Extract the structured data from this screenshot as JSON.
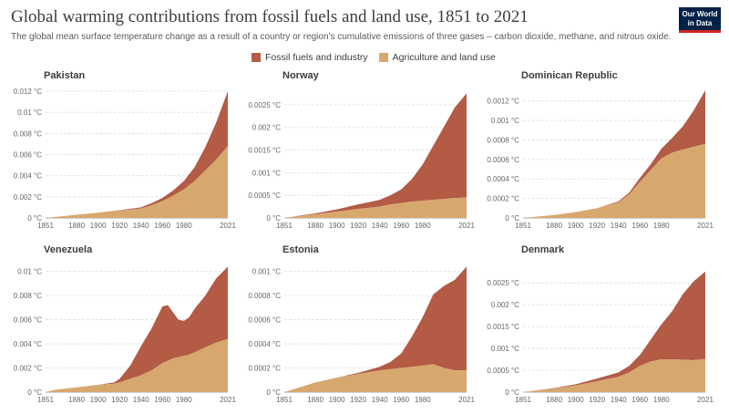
{
  "header": {
    "title": "Global warming contributions from fossil fuels and land use, 1851 to 2021",
    "subtitle": "The global mean surface temperature change as a result of a country or region's cumulative emissions of three gases – carbon dioxide, methane, and nitrous oxide.",
    "logo_line1": "Our World",
    "logo_line2": "in Data"
  },
  "legend": {
    "items": [
      {
        "label": "Fossil fuels and industry",
        "color": "#b35b45"
      },
      {
        "label": "Agriculture and land use",
        "color": "#d7a86e"
      }
    ]
  },
  "chart_data": [
    {
      "type": "area",
      "stacked": true,
      "title": "Pakistan",
      "x_ticks": [
        "1851",
        "1880",
        "1900",
        "1920",
        "1940",
        "1960",
        "1980",
        "2021"
      ],
      "y_ticks": [
        "0 °C",
        "0.002 °C",
        "0.004 °C",
        "0.006 °C",
        "0.008 °C",
        "0.01 °C",
        "0.012 °C"
      ],
      "ylim": [
        0,
        0.012
      ],
      "xlim": [
        1851,
        2021
      ],
      "x": [
        1851,
        1880,
        1900,
        1920,
        1940,
        1950,
        1960,
        1970,
        1980,
        1990,
        2000,
        2010,
        2021
      ],
      "series": [
        {
          "name": "Agriculture and land use",
          "values": [
            0,
            0.0003,
            0.0005,
            0.0007,
            0.0009,
            0.0012,
            0.0016,
            0.0021,
            0.0027,
            0.0035,
            0.0045,
            0.0055,
            0.0068
          ]
        },
        {
          "name": "Fossil fuels and industry",
          "values": [
            0,
            0,
            0,
            3e-05,
            0.0001,
            0.0002,
            0.0003,
            0.0005,
            0.0008,
            0.0013,
            0.0022,
            0.0035,
            0.0052
          ]
        }
      ]
    },
    {
      "type": "area",
      "stacked": true,
      "title": "Norway",
      "x_ticks": [
        "1851",
        "1880",
        "1900",
        "1920",
        "1940",
        "1960",
        "1980",
        "2021"
      ],
      "y_ticks": [
        "0 °C",
        "0.0005 °C",
        "0.001 °C",
        "0.0015 °C",
        "0.002 °C",
        "0.0025 °C"
      ],
      "ylim": [
        0,
        0.0028
      ],
      "xlim": [
        1851,
        2021
      ],
      "x": [
        1851,
        1880,
        1900,
        1920,
        1940,
        1950,
        1960,
        1970,
        1980,
        1990,
        2000,
        2010,
        2021
      ],
      "series": [
        {
          "name": "Agriculture and land use",
          "values": [
            0,
            8e-05,
            0.00014,
            0.0002,
            0.00025,
            0.0003,
            0.00033,
            0.00036,
            0.00038,
            0.0004,
            0.00042,
            0.00044,
            0.00045
          ]
        },
        {
          "name": "Fossil fuels and industry",
          "values": [
            0,
            2e-05,
            5e-05,
            0.0001,
            0.00015,
            0.0002,
            0.0003,
            0.0005,
            0.0008,
            0.0012,
            0.0016,
            0.002,
            0.0023
          ]
        }
      ]
    },
    {
      "type": "area",
      "stacked": true,
      "title": "Dominican Republic",
      "x_ticks": [
        "1851",
        "1880",
        "1900",
        "1920",
        "1940",
        "1960",
        "1980",
        "2021"
      ],
      "y_ticks": [
        "0 °C",
        "0.0002 °C",
        "0.0004 °C",
        "0.0006 °C",
        "0.0008 °C",
        "0.001 °C",
        "0.0012 °C"
      ],
      "ylim": [
        0,
        0.0013
      ],
      "xlim": [
        1851,
        2021
      ],
      "x": [
        1851,
        1880,
        1900,
        1920,
        1940,
        1950,
        1960,
        1970,
        1980,
        1990,
        2000,
        2010,
        2021
      ],
      "series": [
        {
          "name": "Agriculture and land use",
          "values": [
            0,
            3e-05,
            6e-05,
            0.0001,
            0.00016,
            0.00024,
            0.00037,
            0.00049,
            0.00061,
            0.00067,
            0.0007,
            0.00073,
            0.00076
          ]
        },
        {
          "name": "Fossil fuels and industry",
          "values": [
            0,
            0,
            0,
            0,
            1e-05,
            2e-05,
            4e-05,
            6e-05,
            0.0001,
            0.00015,
            0.00024,
            0.00037,
            0.00055
          ]
        }
      ]
    },
    {
      "type": "area",
      "stacked": true,
      "title": "Venezuela",
      "x_ticks": [
        "1851",
        "1880",
        "1900",
        "1920",
        "1940",
        "1960",
        "1980",
        "2021"
      ],
      "y_ticks": [
        "0 °C",
        "0.002 °C",
        "0.004 °C",
        "0.006 °C",
        "0.008 °C",
        "0.01 °C"
      ],
      "ylim": [
        0,
        0.0105
      ],
      "xlim": [
        1851,
        2021
      ],
      "x": [
        1851,
        1860,
        1880,
        1900,
        1915,
        1920,
        1930,
        1940,
        1950,
        1960,
        1965,
        1970,
        1975,
        1980,
        1985,
        1990,
        2000,
        2010,
        2021
      ],
      "series": [
        {
          "name": "Agriculture and land use",
          "values": [
            0,
            0.0002,
            0.0004,
            0.0006,
            0.0007,
            0.0008,
            0.0011,
            0.0014,
            0.0018,
            0.0024,
            0.0026,
            0.0028,
            0.0029,
            0.003,
            0.0031,
            0.0033,
            0.0037,
            0.0041,
            0.0044
          ]
        },
        {
          "name": "Fossil fuels and industry",
          "values": [
            0,
            0,
            0,
            0,
            0.0001,
            0.0003,
            0.0011,
            0.0024,
            0.0035,
            0.0047,
            0.0046,
            0.0038,
            0.0031,
            0.0029,
            0.0031,
            0.0036,
            0.0043,
            0.0053,
            0.006
          ]
        }
      ]
    },
    {
      "type": "area",
      "stacked": true,
      "title": "Estonia",
      "x_ticks": [
        "1851",
        "1880",
        "1900",
        "1920",
        "1940",
        "1960",
        "1980",
        "2021"
      ],
      "y_ticks": [
        "0 °C",
        "0.0002 °C",
        "0.0004 °C",
        "0.0006 °C",
        "0.0008 °C",
        "0.001 °C"
      ],
      "ylim": [
        0,
        0.00105
      ],
      "xlim": [
        1851,
        2021
      ],
      "x": [
        1851,
        1880,
        1900,
        1920,
        1940,
        1950,
        1960,
        1970,
        1980,
        1990,
        2000,
        2010,
        2021
      ],
      "series": [
        {
          "name": "Agriculture and land use",
          "values": [
            0,
            8e-05,
            0.00012,
            0.00015,
            0.00018,
            0.00019,
            0.0002,
            0.00021,
            0.00022,
            0.00023,
            0.0002,
            0.00018,
            0.00018
          ]
        },
        {
          "name": "Fossil fuels and industry",
          "values": [
            0,
            0,
            0,
            1e-05,
            3e-05,
            6e-05,
            0.00012,
            0.00025,
            0.0004,
            0.00058,
            0.00068,
            0.00075,
            0.00086
          ]
        }
      ]
    },
    {
      "type": "area",
      "stacked": true,
      "title": "Denmark",
      "x_ticks": [
        "1851",
        "1880",
        "1900",
        "1920",
        "1940",
        "1960",
        "1980",
        "2021"
      ],
      "y_ticks": [
        "0 °C",
        "0.0005 °C",
        "0.001 °C",
        "0.0015 °C",
        "0.002 °C",
        "0.0025 °C"
      ],
      "ylim": [
        0,
        0.0029
      ],
      "xlim": [
        1851,
        2021
      ],
      "x": [
        1851,
        1880,
        1900,
        1920,
        1940,
        1950,
        1960,
        1970,
        1980,
        1990,
        2000,
        2010,
        2021
      ],
      "series": [
        {
          "name": "Agriculture and land use",
          "values": [
            0,
            8e-05,
            0.00015,
            0.00025,
            0.00035,
            0.00045,
            0.0006,
            0.0007,
            0.00075,
            0.00075,
            0.00074,
            0.00073,
            0.00076
          ]
        },
        {
          "name": "Fossil fuels and industry",
          "values": [
            0,
            1e-05,
            3e-05,
            6e-05,
            0.0001,
            0.00015,
            0.00025,
            0.0005,
            0.0008,
            0.0011,
            0.0015,
            0.0018,
            0.002
          ]
        }
      ]
    }
  ]
}
